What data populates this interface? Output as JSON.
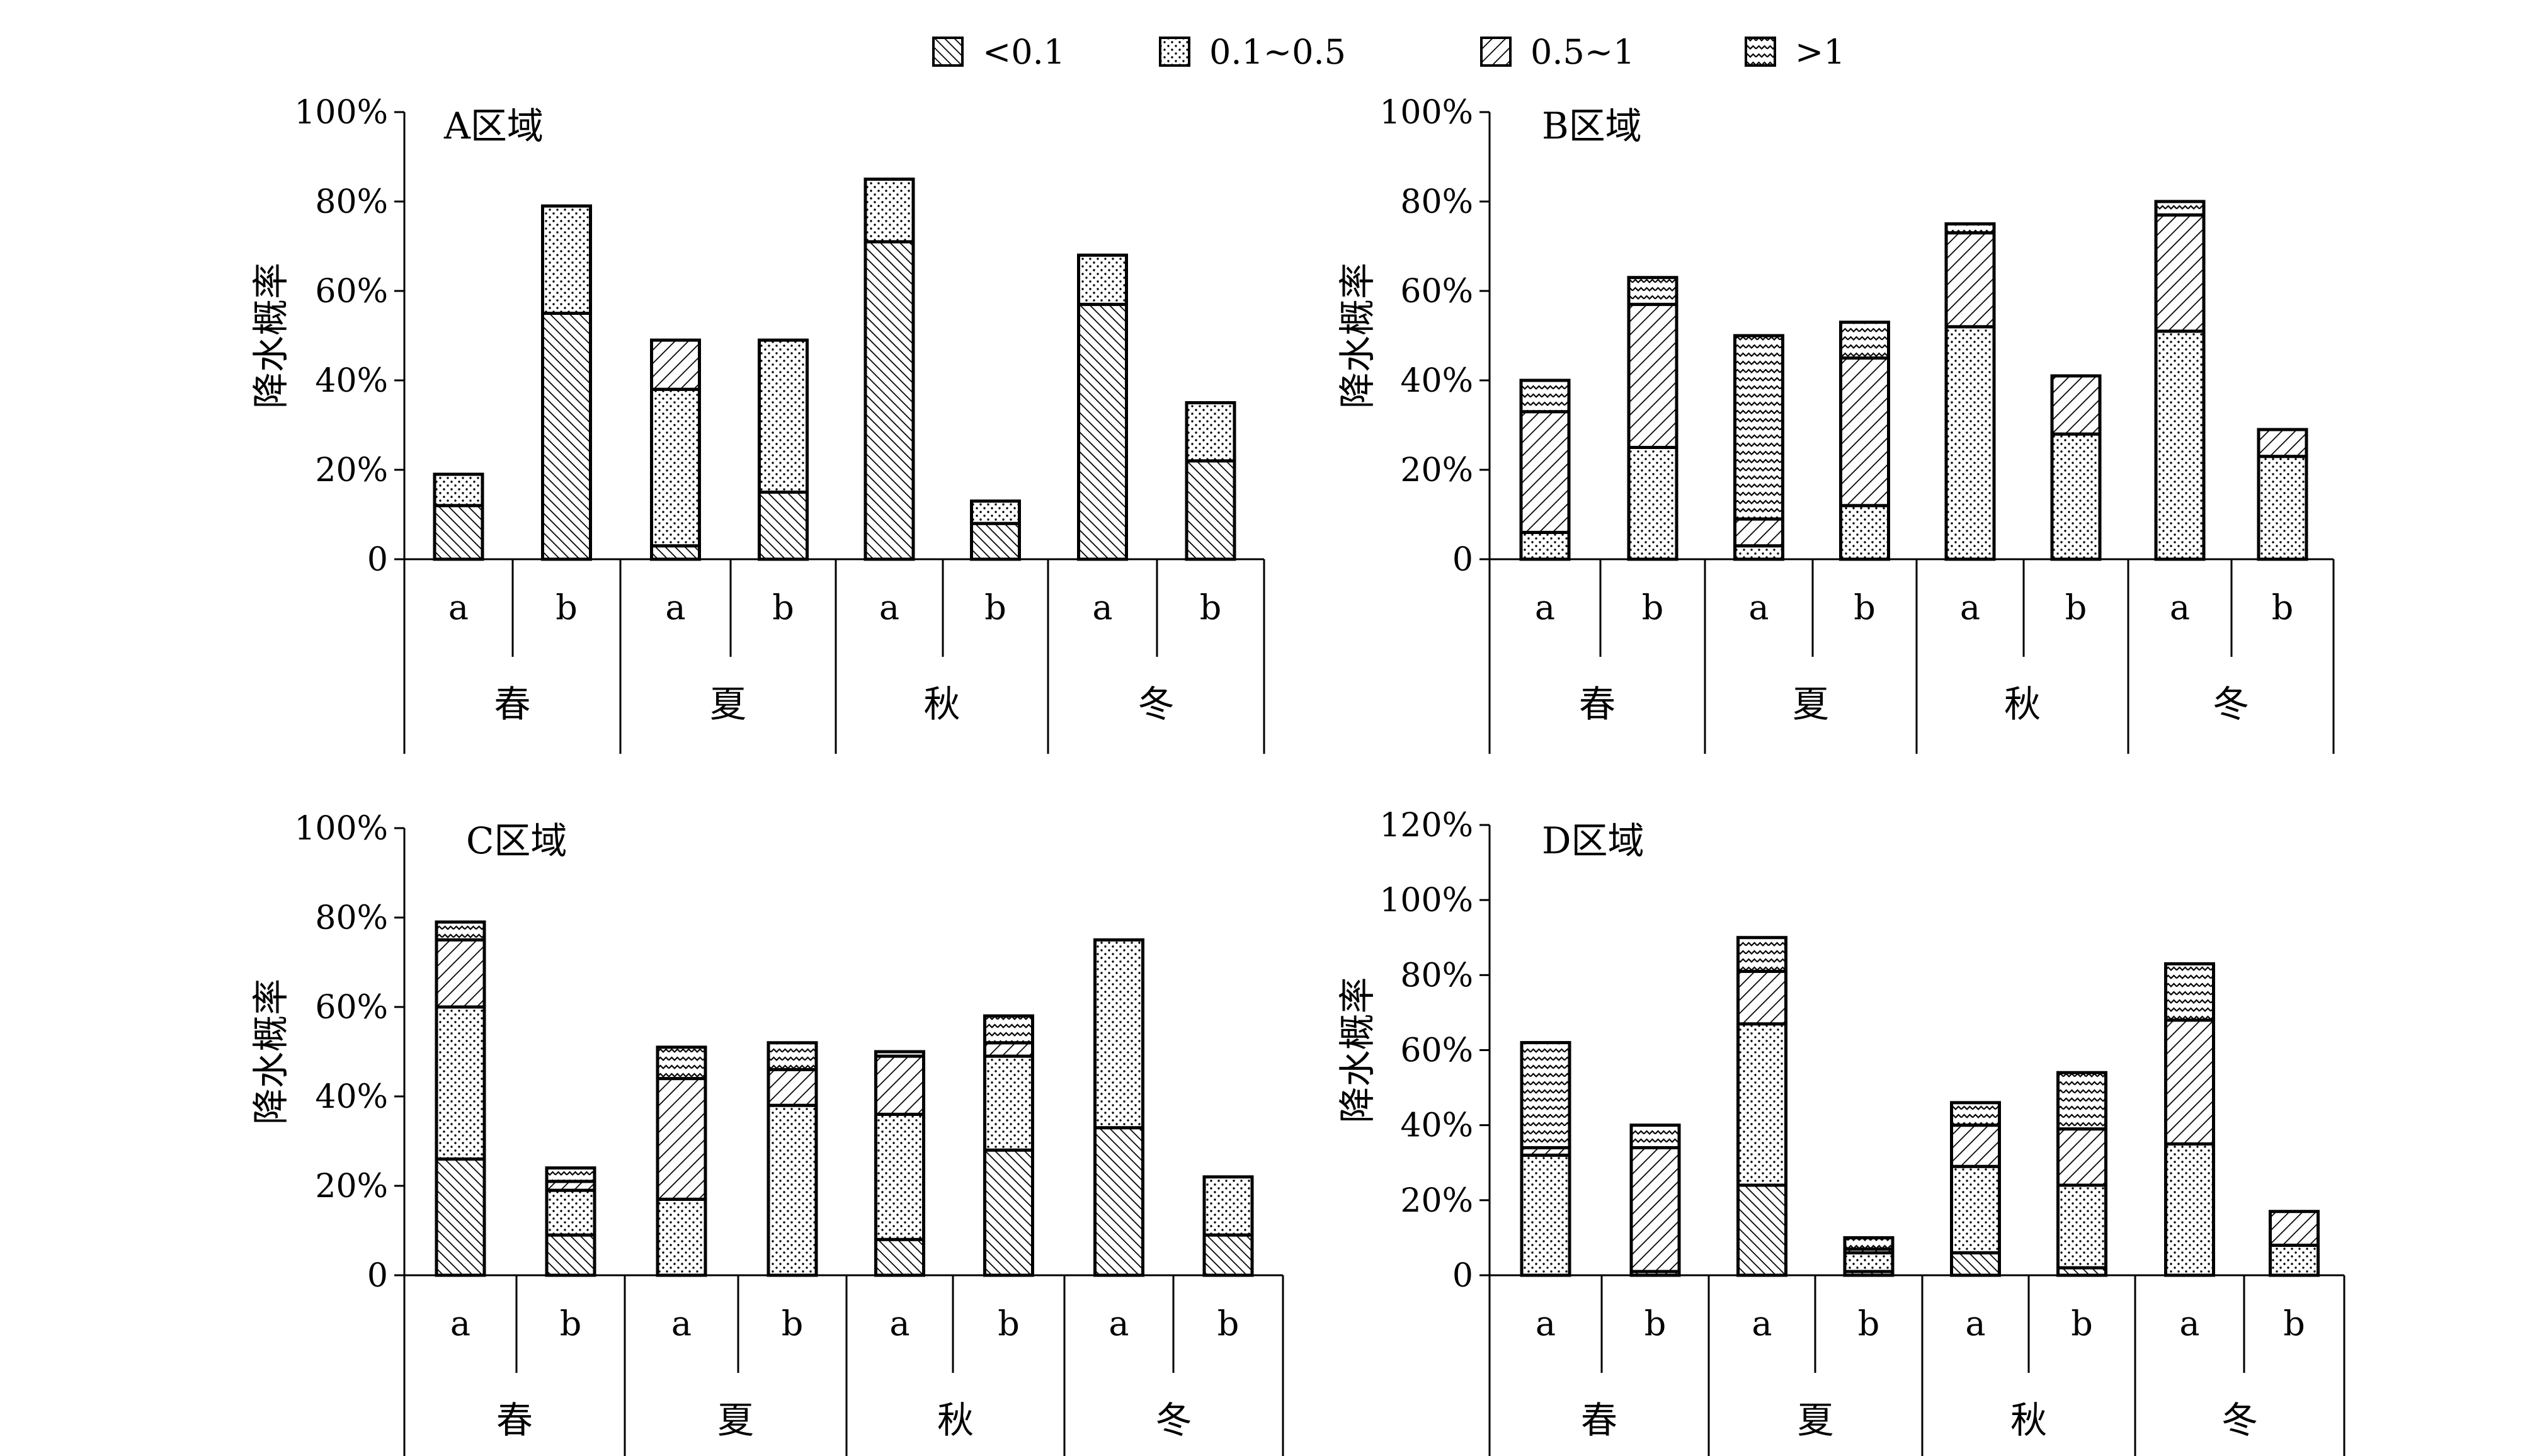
{
  "legend": [
    {
      "label": "<0.1",
      "pattern": "dense-diagonal"
    },
    {
      "label": "0.1~0.5",
      "pattern": "dots"
    },
    {
      "label": "0.5~1",
      "pattern": "diagonal"
    },
    {
      "label": ">1",
      "pattern": "wave"
    }
  ],
  "colors": {
    "ink": "#000000",
    "background": "#ffffff"
  },
  "chart_data": [
    {
      "type": "bar",
      "stacked": true,
      "title": "A区域",
      "ylabel": "降水概率",
      "xlabel": "",
      "ylim": [
        0,
        100
      ],
      "yticks": [
        0,
        20,
        40,
        60,
        80,
        100
      ],
      "ytick_labels": [
        "0",
        "20%",
        "40%",
        "60%",
        "80%",
        "100%"
      ],
      "categories": [
        "a",
        "b",
        "a",
        "b",
        "a",
        "b",
        "a",
        "b"
      ],
      "seasons": [
        "春",
        "夏",
        "秋",
        "冬"
      ],
      "series": [
        {
          "name": "<0.1",
          "values": [
            12,
            55,
            3,
            15,
            71,
            8,
            57,
            22
          ]
        },
        {
          "name": "0.1~0.5",
          "values": [
            7,
            24,
            35,
            34,
            14,
            5,
            11,
            13
          ]
        },
        {
          "name": "0.5~1",
          "values": [
            0,
            0,
            11,
            0,
            0,
            0,
            0,
            0
          ]
        },
        {
          "name": ">1",
          "values": [
            0,
            0,
            0,
            0,
            0,
            0,
            0,
            0
          ]
        }
      ]
    },
    {
      "type": "bar",
      "stacked": true,
      "title": "B区域",
      "ylabel": "降水概率",
      "xlabel": "",
      "ylim": [
        0,
        100
      ],
      "yticks": [
        0,
        20,
        40,
        60,
        80,
        100
      ],
      "ytick_labels": [
        "0",
        "20%",
        "40%",
        "60%",
        "80%",
        "100%"
      ],
      "categories": [
        "a",
        "b",
        "a",
        "b",
        "a",
        "b",
        "a",
        "b"
      ],
      "seasons": [
        "春",
        "夏",
        "秋",
        "冬"
      ],
      "series": [
        {
          "name": "<0.1",
          "values": [
            0,
            0,
            0,
            0,
            0,
            0,
            0,
            0
          ]
        },
        {
          "name": "0.1~0.5",
          "values": [
            6,
            25,
            3,
            12,
            52,
            28,
            51,
            23
          ]
        },
        {
          "name": "0.5~1",
          "values": [
            27,
            32,
            6,
            33,
            21,
            13,
            26,
            6
          ]
        },
        {
          "name": ">1",
          "values": [
            7,
            6,
            41,
            8,
            2,
            0,
            3,
            0
          ]
        }
      ]
    },
    {
      "type": "bar",
      "stacked": true,
      "title": "C区域",
      "ylabel": "降水概率",
      "xlabel": "",
      "ylim": [
        0,
        100
      ],
      "yticks": [
        0,
        20,
        40,
        60,
        80,
        100
      ],
      "ytick_labels": [
        "0",
        "20%",
        "40%",
        "60%",
        "80%",
        "100%"
      ],
      "categories": [
        "a",
        "b",
        "a",
        "b",
        "a",
        "b",
        "a",
        "b"
      ],
      "seasons": [
        "春",
        "夏",
        "秋",
        "冬"
      ],
      "series": [
        {
          "name": "<0.1",
          "values": [
            26,
            9,
            0,
            0,
            8,
            28,
            33,
            9
          ]
        },
        {
          "name": "0.1~0.5",
          "values": [
            34,
            10,
            17,
            38,
            28,
            21,
            42,
            13
          ]
        },
        {
          "name": "0.5~1",
          "values": [
            15,
            2,
            27,
            8,
            13,
            3,
            0,
            0
          ]
        },
        {
          "name": ">1",
          "values": [
            4,
            3,
            7,
            6,
            1,
            6,
            0,
            0
          ]
        }
      ]
    },
    {
      "type": "bar",
      "stacked": true,
      "title": "D区域",
      "ylabel": "降水概率",
      "xlabel": "",
      "ylim": [
        0,
        120
      ],
      "yticks": [
        0,
        20,
        40,
        60,
        80,
        100,
        120
      ],
      "ytick_labels": [
        "0",
        "20%",
        "40%",
        "60%",
        "80%",
        "100%",
        "120%"
      ],
      "categories": [
        "a",
        "b",
        "a",
        "b",
        "a",
        "b",
        "a",
        "b"
      ],
      "seasons": [
        "春",
        "夏",
        "秋",
        "冬"
      ],
      "series": [
        {
          "name": "<0.1",
          "values": [
            0,
            1,
            24,
            1,
            6,
            2,
            0,
            0
          ]
        },
        {
          "name": "0.1~0.5",
          "values": [
            32,
            0,
            43,
            5,
            23,
            22,
            35,
            8
          ]
        },
        {
          "name": "0.5~1",
          "values": [
            2,
            33,
            14,
            1,
            11,
            15,
            33,
            9
          ]
        },
        {
          "name": ">1",
          "values": [
            28,
            6,
            9,
            3,
            6,
            15,
            15,
            0
          ]
        }
      ]
    }
  ]
}
